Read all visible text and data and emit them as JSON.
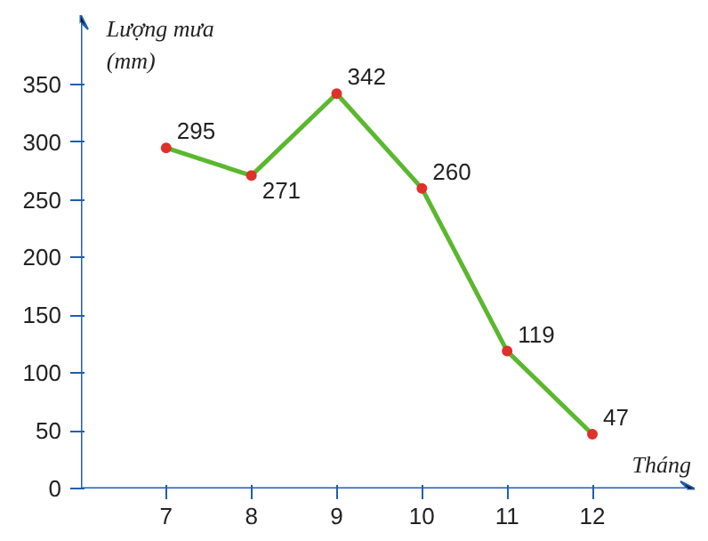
{
  "chart_data": {
    "type": "line",
    "xlabel": "Tháng",
    "ylabel": "Lượng mưa\n(mm)",
    "categories": [
      "7",
      "8",
      "9",
      "10",
      "11",
      "12"
    ],
    "series": [
      {
        "color": "#5ab82e",
        "values": [
          295,
          271,
          342,
          260,
          119,
          47
        ]
      }
    ],
    "ylim": [
      0,
      410
    ],
    "yticks": [
      0,
      50,
      100,
      150,
      200,
      250,
      300,
      350
    ],
    "data_labels": true,
    "marker": "circle",
    "line_style": "solid",
    "grid": false
  }
}
